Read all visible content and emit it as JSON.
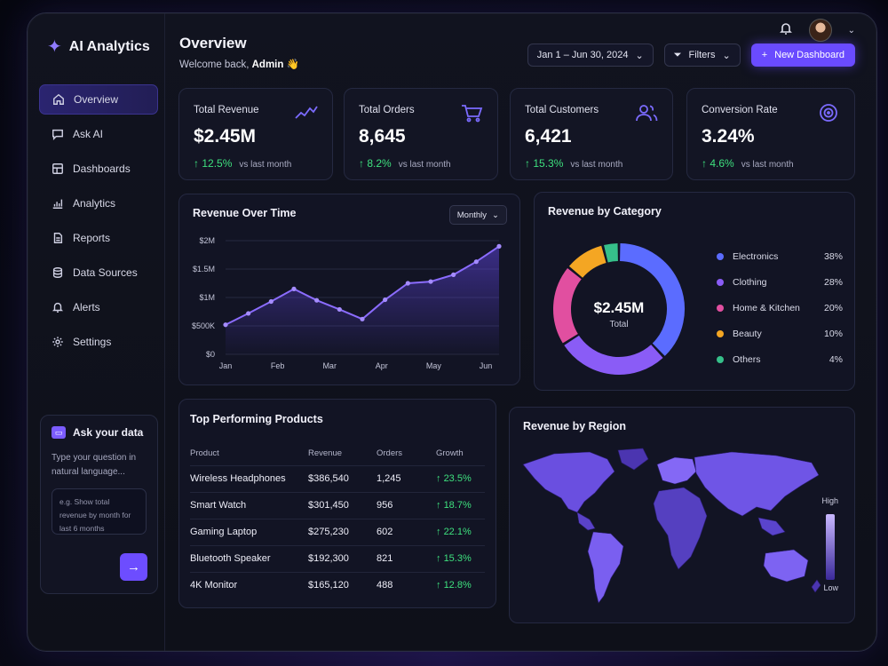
{
  "app": {
    "name": "AI Analytics"
  },
  "header": {
    "title": "Overview",
    "welcome_prefix": "Welcome back, ",
    "welcome_user": "Admin",
    "welcome_emoji": "👋",
    "date_range": "Jan 1 – Jun 30, 2024",
    "filters_label": "Filters",
    "new_dashboard_label": "New Dashboard"
  },
  "sidebar": {
    "items": [
      {
        "label": "Overview",
        "icon": "home-icon"
      },
      {
        "label": "Ask AI",
        "icon": "chat-icon"
      },
      {
        "label": "Dashboards",
        "icon": "grid-icon"
      },
      {
        "label": "Analytics",
        "icon": "bar-chart-icon"
      },
      {
        "label": "Reports",
        "icon": "document-icon"
      },
      {
        "label": "Data Sources",
        "icon": "database-icon"
      },
      {
        "label": "Alerts",
        "icon": "bell-icon"
      },
      {
        "label": "Settings",
        "icon": "gear-icon"
      }
    ],
    "active_index": 0,
    "ask": {
      "title": "Ask your data",
      "description": "Type your question in natural language...",
      "placeholder": "e.g. Show total revenue by month for last 6 months"
    }
  },
  "kpis": [
    {
      "label": "Total Revenue",
      "value": "$2.45M",
      "delta": "12.5%",
      "delta_text": "vs last month",
      "icon": "trend-line-icon"
    },
    {
      "label": "Total Orders",
      "value": "8,645",
      "delta": "8.2%",
      "delta_text": "vs last month",
      "icon": "cart-icon"
    },
    {
      "label": "Total Customers",
      "value": "6,421",
      "delta": "15.3%",
      "delta_text": "vs last month",
      "icon": "users-icon"
    },
    {
      "label": "Conversion Rate",
      "value": "3.24%",
      "delta": "4.6%",
      "delta_text": "vs last month",
      "icon": "target-icon"
    }
  ],
  "revenue_chart": {
    "title": "Revenue Over Time",
    "period": "Monthly",
    "y_ticks": [
      "$0",
      "$500K",
      "$1M",
      "$1.5M",
      "$2M"
    ],
    "x_ticks": [
      "Jan",
      "Feb",
      "Mar",
      "Apr",
      "May",
      "Jun"
    ]
  },
  "category": {
    "title": "Revenue by Category",
    "center_value": "$2.45M",
    "center_label": "Total",
    "items": [
      {
        "name": "Electronics",
        "pct": "38%",
        "color": "#5b6cff"
      },
      {
        "name": "Clothing",
        "pct": "28%",
        "color": "#8a5cf6"
      },
      {
        "name": "Home & Kitchen",
        "pct": "20%",
        "color": "#e14fa0"
      },
      {
        "name": "Beauty",
        "pct": "10%",
        "color": "#f4a623"
      },
      {
        "name": "Others",
        "pct": "4%",
        "color": "#36c08a"
      }
    ]
  },
  "products": {
    "title": "Top Performing Products",
    "columns": [
      "Product",
      "Revenue",
      "Orders",
      "Growth"
    ],
    "rows": [
      {
        "product": "Wireless Headphones",
        "revenue": "$386,540",
        "orders": "1,245",
        "growth": "23.5%"
      },
      {
        "product": "Smart Watch",
        "revenue": "$301,450",
        "orders": "956",
        "growth": "18.7%"
      },
      {
        "product": "Gaming Laptop",
        "revenue": "$275,230",
        "orders": "602",
        "growth": "22.1%"
      },
      {
        "product": "Bluetooth Speaker",
        "revenue": "$192,300",
        "orders": "821",
        "growth": "15.3%"
      },
      {
        "product": "4K Monitor",
        "revenue": "$165,120",
        "orders": "488",
        "growth": "12.8%"
      }
    ]
  },
  "region": {
    "title": "Revenue by Region",
    "scale_high": "High",
    "scale_low": "Low"
  },
  "chart_data": {
    "type": "area",
    "categories": [
      "Jan",
      "Feb",
      "Mar",
      "Apr",
      "May",
      "Jun"
    ],
    "x": [
      0,
      0.5,
      1,
      1.5,
      2,
      2.5,
      3,
      3.5,
      4,
      4.5,
      5,
      5.5,
      6
    ],
    "values": [
      520000,
      720000,
      930000,
      1150000,
      950000,
      790000,
      620000,
      960000,
      1250000,
      1280000,
      1400000,
      1630000,
      1900000
    ],
    "ylabel": "",
    "ylim": [
      0,
      2000000
    ],
    "grid": true,
    "legend": "none",
    "color": "#8b6cff"
  }
}
